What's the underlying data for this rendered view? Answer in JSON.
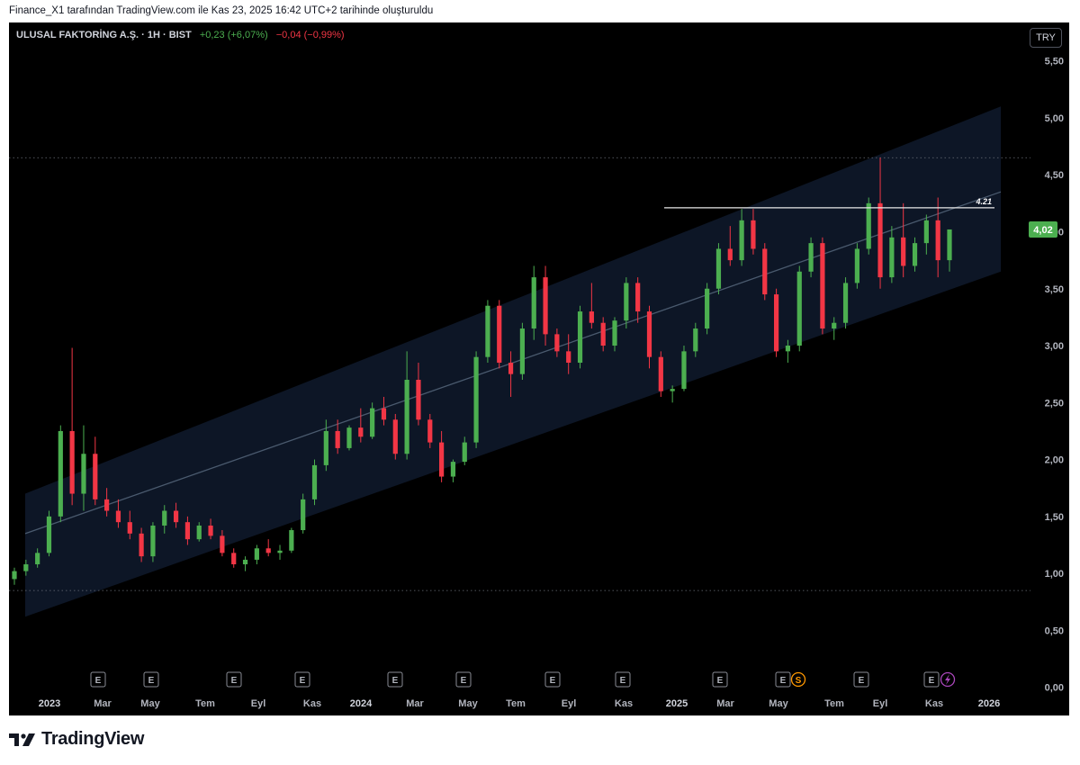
{
  "caption": "Finance_X1 tarafından TradingView.com ile Kas 23, 2025 16:42 UTC+2 tarihinde oluşturuldu",
  "legend": {
    "symbol": "ULUSAL FAKTORİNG A.Ş. · 1H · BIST",
    "change_up": "+0,23 (+6,07%)",
    "change_down": "−0,04 (−0,99%)"
  },
  "currency_button": "TRY",
  "brand": "TradingView",
  "colors": {
    "up": "#4caf50",
    "down": "#f23645",
    "channel": "#0d1626",
    "last_price_bg": "#4caf50"
  },
  "icons": {
    "logo": "tradingview-logo-icon",
    "earnings": "earnings-e-icon",
    "dividend": "dividend-s-icon",
    "split": "split-bolt-icon"
  },
  "chart_data": {
    "type": "candlestick",
    "title": "ULUSAL FAKTORİNG A.Ş. · 1H · BIST",
    "y_axis": {
      "ticks": [
        "0,00",
        "0,50",
        "1,00",
        "1,50",
        "2,00",
        "2,50",
        "3,00",
        "3,50",
        "4,00",
        "4,50",
        "5,00",
        "5,50"
      ],
      "range": [
        -0.05,
        5.6
      ]
    },
    "x_axis": {
      "ticks": [
        "2023",
        "Mar",
        "May",
        "Tem",
        "Eyl",
        "Kas",
        "2024",
        "Mar",
        "May",
        "Tem",
        "Eyl",
        "Kas",
        "2025",
        "Mar",
        "May",
        "Tem",
        "Eyl",
        "Kas",
        "2026"
      ]
    },
    "candles": [
      {
        "o": 0.95,
        "h": 1.05,
        "l": 0.9,
        "c": 1.02
      },
      {
        "o": 1.02,
        "h": 1.12,
        "l": 0.98,
        "c": 1.08
      },
      {
        "o": 1.08,
        "h": 1.22,
        "l": 1.05,
        "c": 1.18
      },
      {
        "o": 1.18,
        "h": 1.55,
        "l": 1.15,
        "c": 1.5
      },
      {
        "o": 1.5,
        "h": 2.3,
        "l": 1.45,
        "c": 2.25
      },
      {
        "o": 2.25,
        "h": 2.98,
        "l": 1.6,
        "c": 1.7
      },
      {
        "o": 1.7,
        "h": 2.3,
        "l": 1.55,
        "c": 2.05
      },
      {
        "o": 2.05,
        "h": 2.2,
        "l": 1.6,
        "c": 1.65
      },
      {
        "o": 1.65,
        "h": 1.75,
        "l": 1.5,
        "c": 1.55
      },
      {
        "o": 1.55,
        "h": 1.65,
        "l": 1.4,
        "c": 1.45
      },
      {
        "o": 1.45,
        "h": 1.55,
        "l": 1.3,
        "c": 1.35
      },
      {
        "o": 1.35,
        "h": 1.4,
        "l": 1.1,
        "c": 1.15
      },
      {
        "o": 1.15,
        "h": 1.45,
        "l": 1.1,
        "c": 1.42
      },
      {
        "o": 1.42,
        "h": 1.6,
        "l": 1.35,
        "c": 1.55
      },
      {
        "o": 1.55,
        "h": 1.62,
        "l": 1.4,
        "c": 1.45
      },
      {
        "o": 1.45,
        "h": 1.5,
        "l": 1.25,
        "c": 1.3
      },
      {
        "o": 1.3,
        "h": 1.45,
        "l": 1.28,
        "c": 1.42
      },
      {
        "o": 1.42,
        "h": 1.48,
        "l": 1.3,
        "c": 1.33
      },
      {
        "o": 1.33,
        "h": 1.38,
        "l": 1.15,
        "c": 1.18
      },
      {
        "o": 1.18,
        "h": 1.22,
        "l": 1.05,
        "c": 1.08
      },
      {
        "o": 1.08,
        "h": 1.15,
        "l": 1.02,
        "c": 1.12
      },
      {
        "o": 1.12,
        "h": 1.25,
        "l": 1.08,
        "c": 1.22
      },
      {
        "o": 1.22,
        "h": 1.3,
        "l": 1.15,
        "c": 1.18
      },
      {
        "o": 1.18,
        "h": 1.25,
        "l": 1.12,
        "c": 1.2
      },
      {
        "o": 1.2,
        "h": 1.4,
        "l": 1.18,
        "c": 1.38
      },
      {
        "o": 1.38,
        "h": 1.7,
        "l": 1.35,
        "c": 1.65
      },
      {
        "o": 1.65,
        "h": 2.0,
        "l": 1.6,
        "c": 1.95
      },
      {
        "o": 1.95,
        "h": 2.35,
        "l": 1.9,
        "c": 2.25
      },
      {
        "o": 2.25,
        "h": 2.35,
        "l": 2.05,
        "c": 2.1
      },
      {
        "o": 2.1,
        "h": 2.3,
        "l": 2.08,
        "c": 2.28
      },
      {
        "o": 2.28,
        "h": 2.45,
        "l": 2.15,
        "c": 2.2
      },
      {
        "o": 2.2,
        "h": 2.5,
        "l": 2.18,
        "c": 2.45
      },
      {
        "o": 2.45,
        "h": 2.55,
        "l": 2.3,
        "c": 2.35
      },
      {
        "o": 2.35,
        "h": 2.4,
        "l": 2.0,
        "c": 2.05
      },
      {
        "o": 2.05,
        "h": 2.95,
        "l": 2.0,
        "c": 2.7
      },
      {
        "o": 2.7,
        "h": 2.85,
        "l": 2.3,
        "c": 2.35
      },
      {
        "o": 2.35,
        "h": 2.4,
        "l": 2.1,
        "c": 2.15
      },
      {
        "o": 2.15,
        "h": 2.25,
        "l": 1.8,
        "c": 1.85
      },
      {
        "o": 1.85,
        "h": 2.0,
        "l": 1.8,
        "c": 1.98
      },
      {
        "o": 1.98,
        "h": 2.2,
        "l": 1.95,
        "c": 2.15
      },
      {
        "o": 2.15,
        "h": 2.95,
        "l": 2.1,
        "c": 2.9
      },
      {
        "o": 2.9,
        "h": 3.4,
        "l": 2.85,
        "c": 3.35
      },
      {
        "o": 3.35,
        "h": 3.4,
        "l": 2.8,
        "c": 2.85
      },
      {
        "o": 2.85,
        "h": 2.95,
        "l": 2.55,
        "c": 2.75
      },
      {
        "o": 2.75,
        "h": 3.2,
        "l": 2.7,
        "c": 3.15
      },
      {
        "o": 3.15,
        "h": 3.7,
        "l": 3.05,
        "c": 3.6
      },
      {
        "o": 3.6,
        "h": 3.7,
        "l": 3.0,
        "c": 3.1
      },
      {
        "o": 3.1,
        "h": 3.15,
        "l": 2.9,
        "c": 2.95
      },
      {
        "o": 2.95,
        "h": 3.1,
        "l": 2.75,
        "c": 2.85
      },
      {
        "o": 2.85,
        "h": 3.35,
        "l": 2.8,
        "c": 3.3
      },
      {
        "o": 3.3,
        "h": 3.55,
        "l": 3.15,
        "c": 3.2
      },
      {
        "o": 3.2,
        "h": 3.25,
        "l": 2.95,
        "c": 3.0
      },
      {
        "o": 3.0,
        "h": 3.25,
        "l": 2.95,
        "c": 3.22
      },
      {
        "o": 3.22,
        "h": 3.6,
        "l": 3.15,
        "c": 3.55
      },
      {
        "o": 3.55,
        "h": 3.6,
        "l": 3.2,
        "c": 3.3
      },
      {
        "o": 3.3,
        "h": 3.35,
        "l": 2.8,
        "c": 2.9
      },
      {
        "o": 2.9,
        "h": 2.95,
        "l": 2.55,
        "c": 2.6
      },
      {
        "o": 2.6,
        "h": 2.65,
        "l": 2.5,
        "c": 2.62
      },
      {
        "o": 2.62,
        "h": 3.0,
        "l": 2.6,
        "c": 2.95
      },
      {
        "o": 2.95,
        "h": 3.2,
        "l": 2.9,
        "c": 3.15
      },
      {
        "o": 3.15,
        "h": 3.55,
        "l": 3.1,
        "c": 3.5
      },
      {
        "o": 3.5,
        "h": 3.9,
        "l": 3.45,
        "c": 3.85
      },
      {
        "o": 3.85,
        "h": 4.05,
        "l": 3.7,
        "c": 3.75
      },
      {
        "o": 3.75,
        "h": 4.2,
        "l": 3.7,
        "c": 4.1
      },
      {
        "o": 4.1,
        "h": 4.2,
        "l": 3.8,
        "c": 3.85
      },
      {
        "o": 3.85,
        "h": 3.9,
        "l": 3.4,
        "c": 3.45
      },
      {
        "o": 3.45,
        "h": 3.5,
        "l": 2.9,
        "c": 2.95
      },
      {
        "o": 2.95,
        "h": 3.05,
        "l": 2.85,
        "c": 3.0
      },
      {
        "o": 3.0,
        "h": 3.7,
        "l": 2.95,
        "c": 3.65
      },
      {
        "o": 3.65,
        "h": 3.95,
        "l": 3.6,
        "c": 3.9
      },
      {
        "o": 3.9,
        "h": 3.95,
        "l": 3.1,
        "c": 3.15
      },
      {
        "o": 3.15,
        "h": 3.25,
        "l": 3.05,
        "c": 3.2
      },
      {
        "o": 3.2,
        "h": 3.6,
        "l": 3.15,
        "c": 3.55
      },
      {
        "o": 3.55,
        "h": 3.9,
        "l": 3.5,
        "c": 3.85
      },
      {
        "o": 3.85,
        "h": 4.3,
        "l": 3.8,
        "c": 4.25
      },
      {
        "o": 4.25,
        "h": 4.65,
        "l": 3.5,
        "c": 3.6
      },
      {
        "o": 3.6,
        "h": 4.05,
        "l": 3.55,
        "c": 3.95
      },
      {
        "o": 3.95,
        "h": 4.25,
        "l": 3.6,
        "c": 3.7
      },
      {
        "o": 3.7,
        "h": 3.95,
        "l": 3.65,
        "c": 3.9
      },
      {
        "o": 3.9,
        "h": 4.15,
        "l": 3.8,
        "c": 4.1
      },
      {
        "o": 4.1,
        "h": 4.3,
        "l": 3.6,
        "c": 3.75
      },
      {
        "o": 3.75,
        "h": 4.0,
        "l": 3.65,
        "c": 4.02
      }
    ],
    "channel": {
      "upper": [
        1.7,
        5.1
      ],
      "mid": [
        1.35,
        4.35
      ],
      "lower": [
        0.62,
        3.65
      ]
    },
    "resistance": {
      "label": "4.21",
      "value": 4.21
    },
    "dotted_levels": [
      4.65,
      0.85
    ],
    "last_price": {
      "label": "4,02",
      "value": 4.02
    },
    "event_markers": [
      "E",
      "E",
      "E",
      "E",
      "E",
      "E",
      "E",
      "E",
      "E",
      "E",
      "E",
      "S",
      "E"
    ]
  }
}
